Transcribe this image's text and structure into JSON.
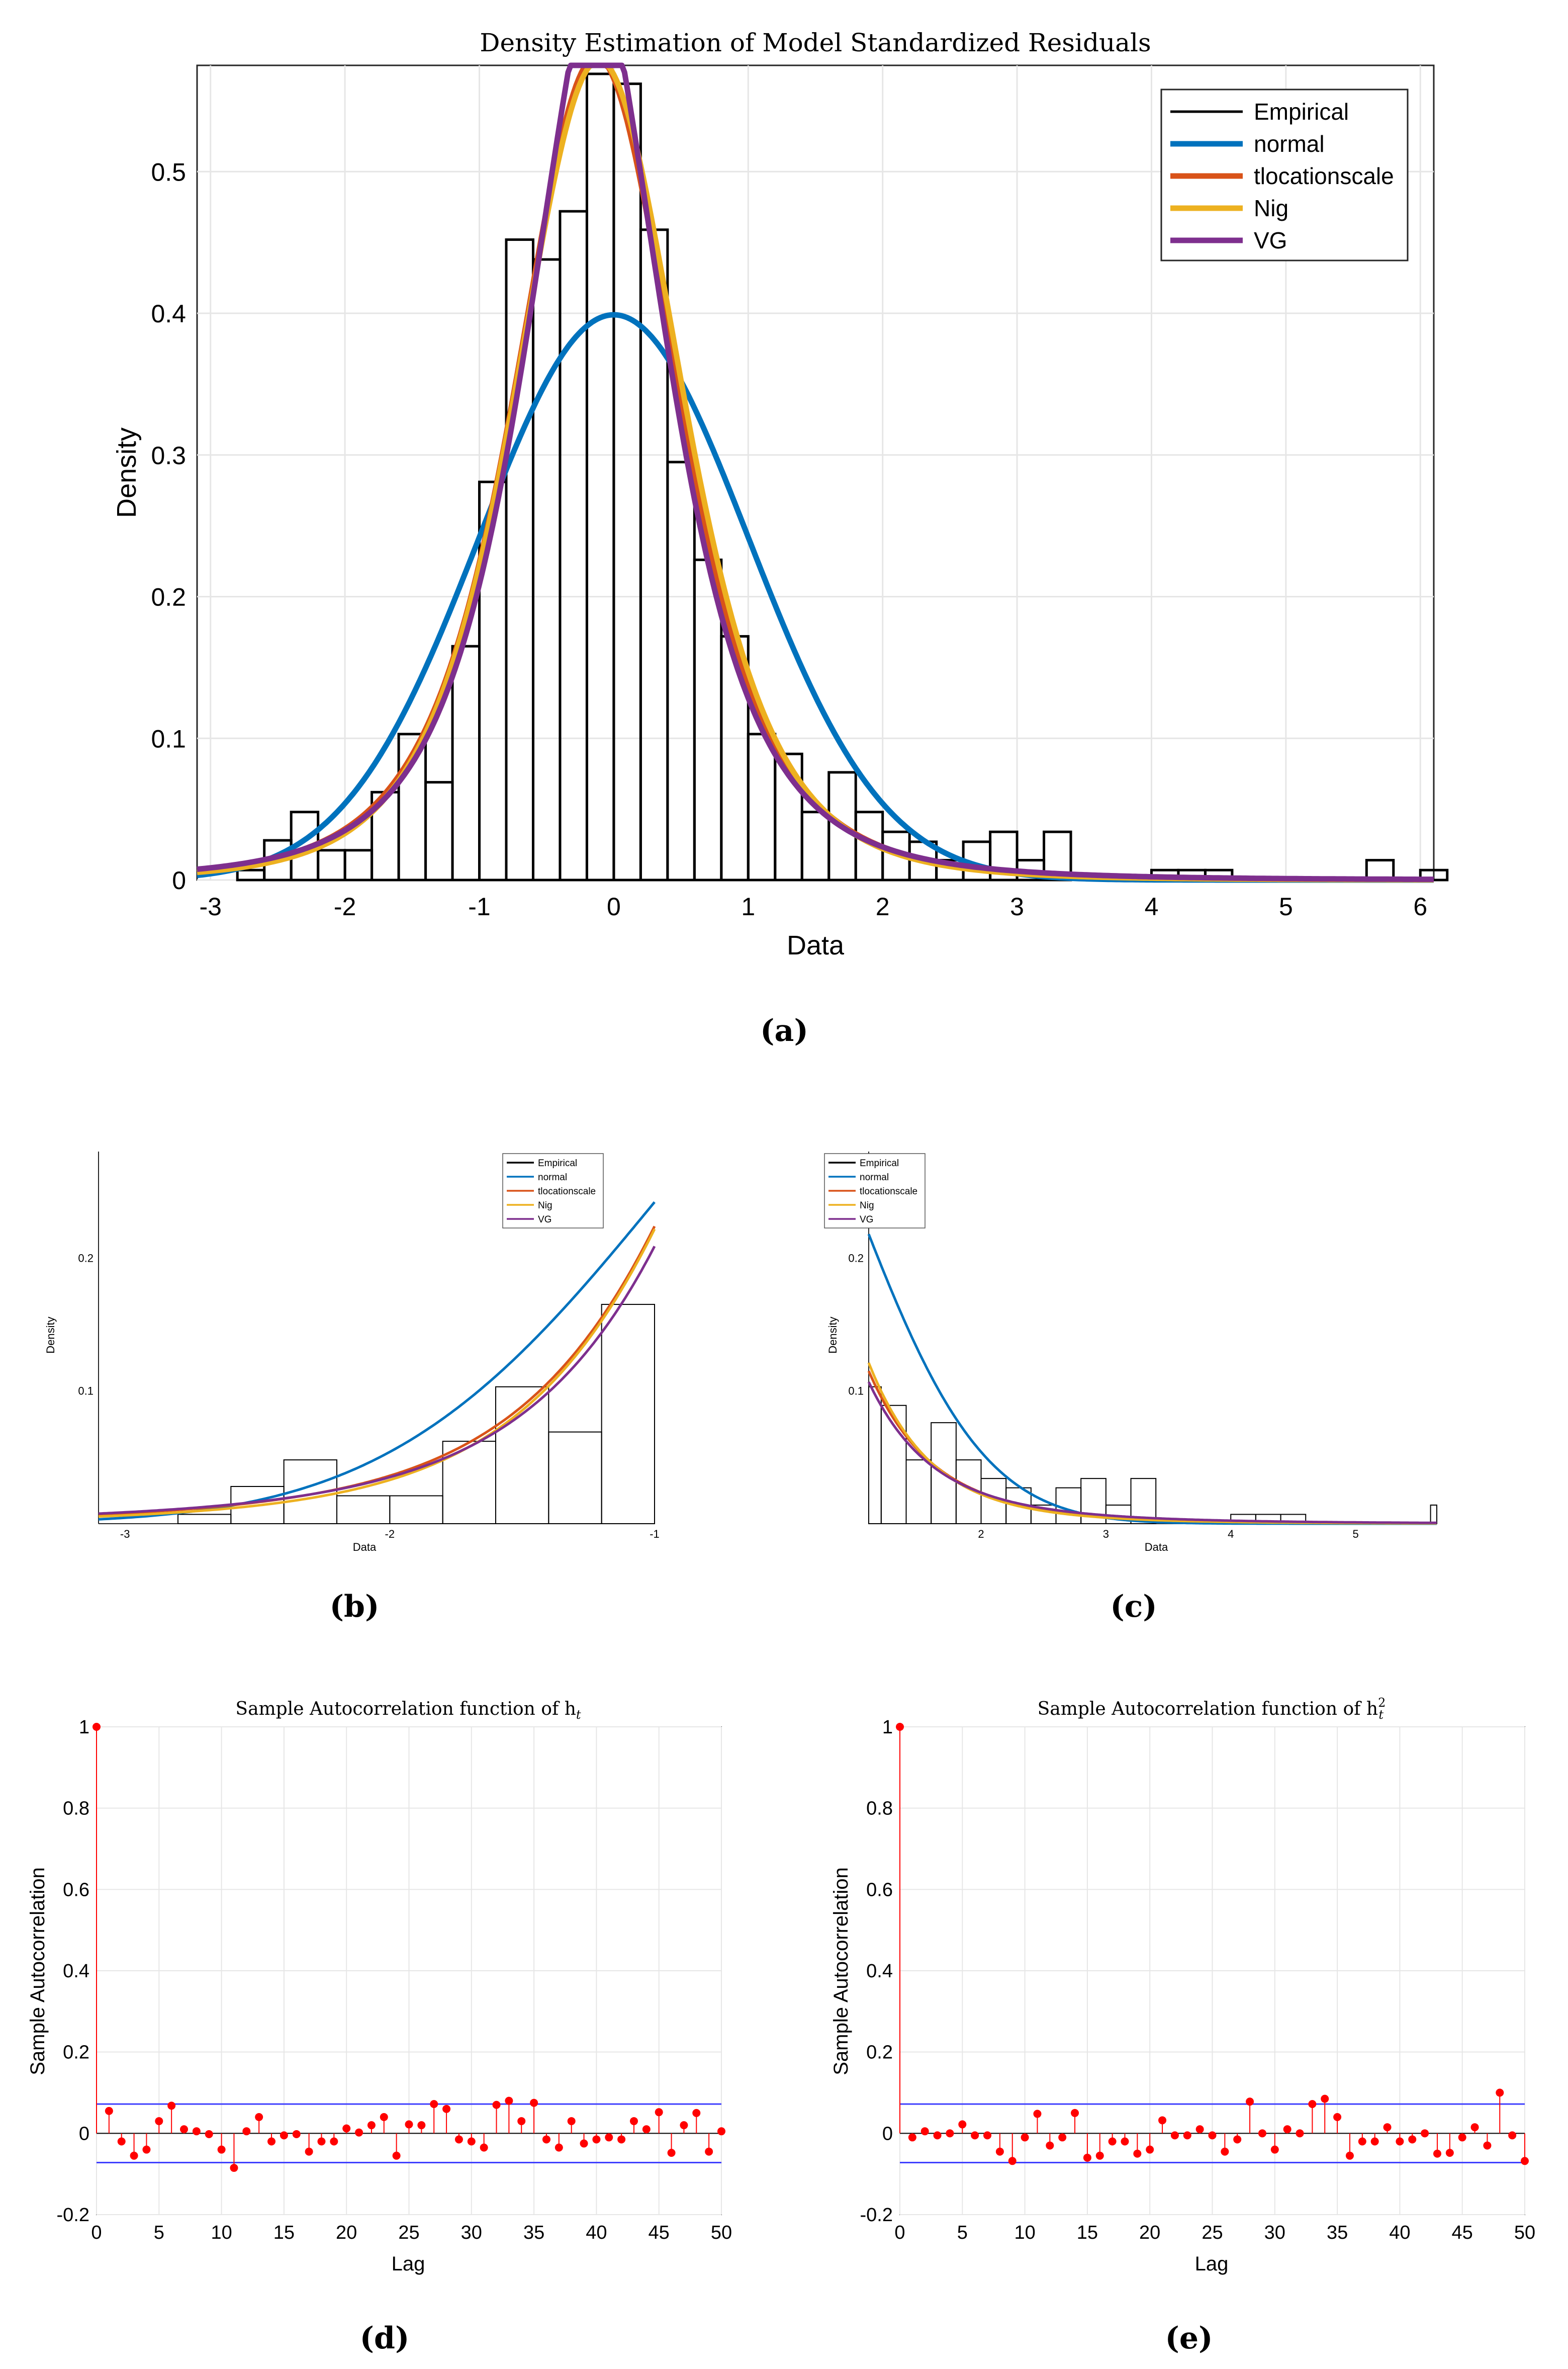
{
  "colors": {
    "Empirical": "#000000",
    "normal": "#0072BD",
    "tlocationscale": "#D95319",
    "Nig": "#EDB120",
    "VG": "#7E2F8E",
    "stem": "#FF0000",
    "bounds": "#4040FF",
    "grid": "#E6E6E6"
  },
  "panels": [
    {
      "id": "a",
      "caption": "(a)",
      "chart_data": {
        "type": "line",
        "title": "Density Estimation of Model Standardized Residuals",
        "xlabel": "Data",
        "ylabel": "Density",
        "xlim": [
          -3.1,
          6.1
        ],
        "ylim": [
          0,
          0.575
        ],
        "xticks": [
          -3,
          -2,
          -1,
          0,
          1,
          2,
          3,
          4,
          5,
          6
        ],
        "xtick_labels": [
          "-3",
          "-2",
          "-1",
          "0",
          "1",
          "2",
          "3",
          "4",
          "5",
          "6"
        ],
        "yticks": [
          0,
          0.1,
          0.2,
          0.3,
          0.4,
          0.5
        ],
        "ytick_labels": [
          "0",
          "0.1",
          "0.2",
          "0.3",
          "0.4",
          "0.5"
        ],
        "grid": true,
        "legend_position": "top-right",
        "legend": [
          "Empirical",
          "normal",
          "tlocationscale",
          "Nig",
          "VG"
        ],
        "histogram": {
          "bin_width": 0.2,
          "start": -2.8,
          "counts": [
            0.007,
            0.028,
            0.048,
            0.021,
            0.021,
            0.062,
            0.103,
            0.069,
            0.165,
            0.281,
            0.452,
            0.438,
            0.472,
            0.569,
            0.562,
            0.459,
            0.295,
            0.226,
            0.172,
            0.103,
            0.089,
            0.048,
            0.076,
            0.048,
            0.034,
            0.027,
            0.014,
            0.027,
            0.034,
            0.014,
            0.034,
            0.0,
            0.0,
            0.0,
            0.007,
            0.007,
            0.007,
            0.0,
            0.0,
            0.0,
            0.0,
            0.0,
            0.014,
            0.0,
            0.007
          ]
        },
        "series": [
          {
            "name": "normal",
            "dist": "normal",
            "params": [
              0,
              1
            ]
          },
          {
            "name": "tlocationscale",
            "dist": "t",
            "params": [
              -0.13,
              0.64,
              3.5
            ]
          },
          {
            "name": "Nig",
            "dist": "t",
            "params": [
              -0.11,
              0.65,
              4.2
            ]
          },
          {
            "name": "VG",
            "dist": "laplaceish",
            "params": [
              -0.13,
              0.62,
              3.0
            ]
          }
        ]
      }
    },
    {
      "id": "b",
      "caption": "(b)",
      "chart_data": {
        "type": "line",
        "title": "",
        "xlabel": "Data",
        "ylabel": "Density",
        "xlim": [
          -3.1,
          -1
        ],
        "ylim": [
          0,
          0.28
        ],
        "xticks": [
          -3,
          -2,
          -1
        ],
        "xtick_labels": [
          "-3",
          "-2",
          "-1"
        ],
        "yticks": [
          0.1,
          0.2
        ],
        "ytick_labels": [
          "0.1",
          "0.2"
        ],
        "grid": false,
        "legend_position": "top-right",
        "legend": [
          "Empirical",
          "normal",
          "tlocationscale",
          "Nig",
          "VG"
        ]
      }
    },
    {
      "id": "c",
      "caption": "(c)",
      "chart_data": {
        "type": "line",
        "title": "",
        "xlabel": "Data",
        "ylabel": "Density",
        "xlim": [
          1.1,
          5.65
        ],
        "ylim": [
          0,
          0.28
        ],
        "xticks": [
          2,
          3,
          4,
          5
        ],
        "xtick_labels": [
          "2",
          "3",
          "4",
          "5"
        ],
        "yticks": [
          0.1,
          0.2
        ],
        "ytick_labels": [
          "0.1",
          "0.2"
        ],
        "grid": false,
        "legend_position": "top-right",
        "legend": [
          "Empirical",
          "normal",
          "tlocationscale",
          "Nig",
          "VG"
        ]
      }
    },
    {
      "id": "d",
      "caption": "(d)",
      "chart_data": {
        "type": "scatter",
        "title_text": "Sample Autocorrelation function of h",
        "title_sub": "t",
        "title_sup": "",
        "xlabel": "Lag",
        "ylabel": "Sample Autocorrelation",
        "xlim": [
          0,
          50
        ],
        "ylim": [
          -0.2,
          1
        ],
        "xticks": [
          0,
          5,
          10,
          15,
          20,
          25,
          30,
          35,
          40,
          45,
          50
        ],
        "xtick_labels": [
          "0",
          "5",
          "10",
          "15",
          "20",
          "25",
          "30",
          "35",
          "40",
          "45",
          "50"
        ],
        "yticks": [
          -0.2,
          0,
          0.2,
          0.4,
          0.6,
          0.8,
          1
        ],
        "ytick_labels": [
          "-0.2",
          "0",
          "0.2",
          "0.4",
          "0.6",
          "0.8",
          "1"
        ],
        "grid": true,
        "bounds": [
          0.072,
          -0.072
        ],
        "lags": [
          0,
          1,
          2,
          3,
          4,
          5,
          6,
          7,
          8,
          9,
          10,
          11,
          12,
          13,
          14,
          15,
          16,
          17,
          18,
          19,
          20,
          21,
          22,
          23,
          24,
          25,
          26,
          27,
          28,
          29,
          30,
          31,
          32,
          33,
          34,
          35,
          36,
          37,
          38,
          39,
          40,
          41,
          42,
          43,
          44,
          45,
          46,
          47,
          48,
          49,
          50
        ],
        "values": [
          1.0,
          0.055,
          -0.02,
          -0.055,
          -0.04,
          0.03,
          0.068,
          0.01,
          0.005,
          -0.002,
          -0.04,
          -0.085,
          0.005,
          0.04,
          -0.02,
          -0.005,
          -0.002,
          -0.045,
          -0.02,
          -0.02,
          0.012,
          0.002,
          0.02,
          0.04,
          -0.055,
          0.022,
          0.02,
          0.072,
          0.06,
          -0.015,
          -0.02,
          -0.035,
          0.07,
          0.08,
          0.03,
          0.075,
          -0.015,
          -0.035,
          0.03,
          -0.025,
          -0.015,
          -0.01,
          -0.015,
          0.03,
          0.01,
          0.052,
          -0.048,
          0.02,
          0.05,
          -0.045,
          0.005
        ]
      }
    },
    {
      "id": "e",
      "caption": "(e)",
      "chart_data": {
        "type": "scatter",
        "title_text": "Sample Autocorrelation function of h",
        "title_sub": "t",
        "title_sup": "2",
        "xlabel": "Lag",
        "ylabel": "Sample Autocorrelation",
        "xlim": [
          0,
          50
        ],
        "ylim": [
          -0.2,
          1
        ],
        "xticks": [
          0,
          5,
          10,
          15,
          20,
          25,
          30,
          35,
          40,
          45,
          50
        ],
        "xtick_labels": [
          "0",
          "5",
          "10",
          "15",
          "20",
          "25",
          "30",
          "35",
          "40",
          "45",
          "50"
        ],
        "yticks": [
          -0.2,
          0,
          0.2,
          0.4,
          0.6,
          0.8,
          1
        ],
        "ytick_labels": [
          "-0.2",
          "0",
          "0.2",
          "0.4",
          "0.6",
          "0.8",
          "1"
        ],
        "grid": true,
        "bounds": [
          0.072,
          -0.072
        ],
        "lags": [
          0,
          1,
          2,
          3,
          4,
          5,
          6,
          7,
          8,
          9,
          10,
          11,
          12,
          13,
          14,
          15,
          16,
          17,
          18,
          19,
          20,
          21,
          22,
          23,
          24,
          25,
          26,
          27,
          28,
          29,
          30,
          31,
          32,
          33,
          34,
          35,
          36,
          37,
          38,
          39,
          40,
          41,
          42,
          43,
          44,
          45,
          46,
          47,
          48,
          49,
          50
        ],
        "values": [
          1.0,
          -0.01,
          0.005,
          -0.005,
          0.0,
          0.022,
          -0.005,
          -0.005,
          -0.045,
          -0.068,
          -0.01,
          0.048,
          -0.03,
          -0.01,
          0.05,
          -0.06,
          -0.055,
          -0.02,
          -0.02,
          -0.05,
          -0.04,
          0.032,
          -0.005,
          -0.005,
          0.01,
          -0.005,
          -0.045,
          -0.015,
          0.078,
          0.0,
          -0.04,
          0.01,
          0.0,
          0.072,
          0.085,
          0.04,
          -0.055,
          -0.02,
          -0.02,
          0.015,
          -0.02,
          -0.015,
          0.0,
          -0.05,
          -0.048,
          -0.01,
          0.015,
          -0.03,
          0.1,
          -0.005,
          -0.068
        ]
      }
    }
  ]
}
